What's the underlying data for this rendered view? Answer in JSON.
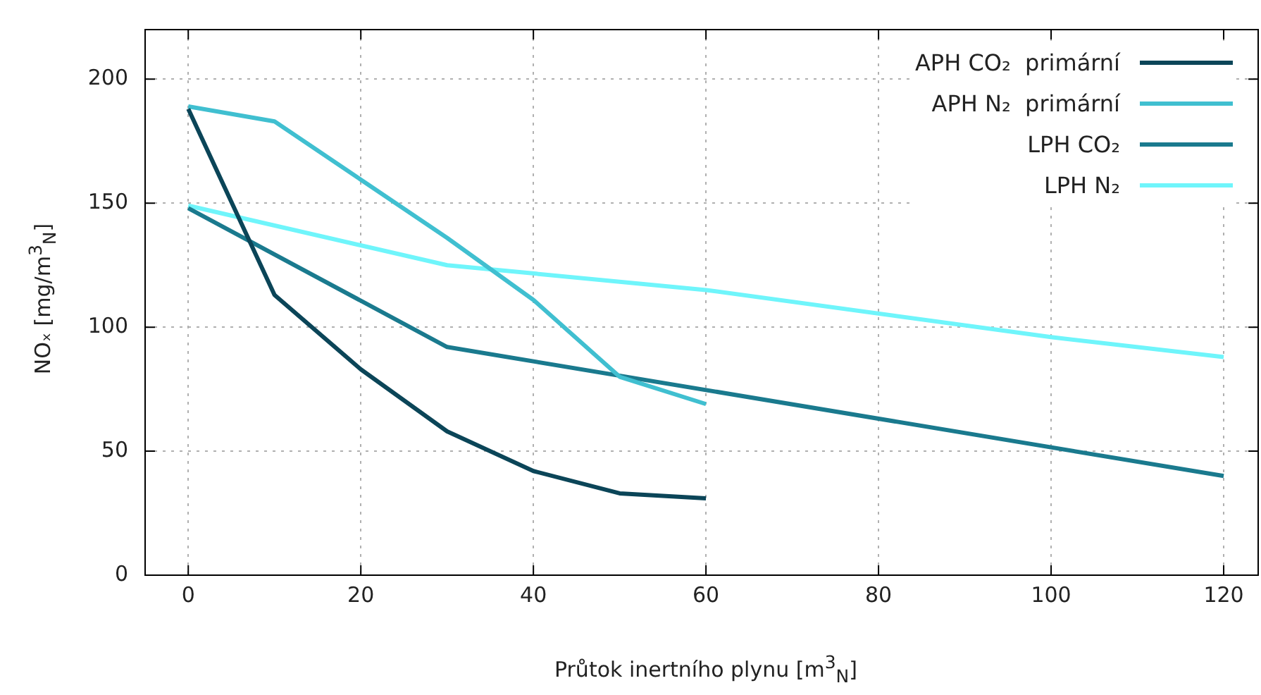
{
  "chart_data": {
    "type": "line",
    "xlabel": "Průtok inertního plynu [m$^{3}$$_{N}$]",
    "ylabel": "NOₓ  [mg/m$^{3}$$_{N}$]",
    "xlim": [
      -5,
      124
    ],
    "xticks": [
      0,
      20,
      40,
      60,
      80,
      100,
      120
    ],
    "ylim": [
      0,
      220
    ],
    "yticks": [
      0,
      50,
      100,
      150,
      200
    ],
    "grid": true,
    "legend": "top right",
    "series": [
      {
        "name": "APH CO₂  primární",
        "color": "#0b4558",
        "x": [
          0,
          10,
          20,
          30,
          40,
          50,
          60
        ],
        "values": [
          188,
          113,
          83,
          58,
          42,
          33,
          31
        ]
      },
      {
        "name": "APH N₂  primární",
        "color": "#40bfd0",
        "x": [
          0,
          10,
          30,
          40,
          50,
          60
        ],
        "values": [
          189,
          183,
          136,
          111,
          80,
          69
        ]
      },
      {
        "name": "LPH CO₂",
        "color": "#1a7a8e",
        "x": [
          0,
          30,
          120
        ],
        "values": [
          148,
          92,
          40
        ]
      },
      {
        "name": "LPH N₂",
        "color": "#6ff5fb",
        "x": [
          0,
          30,
          60,
          100,
          120
        ],
        "values": [
          149,
          125,
          115,
          96,
          88
        ]
      }
    ]
  }
}
